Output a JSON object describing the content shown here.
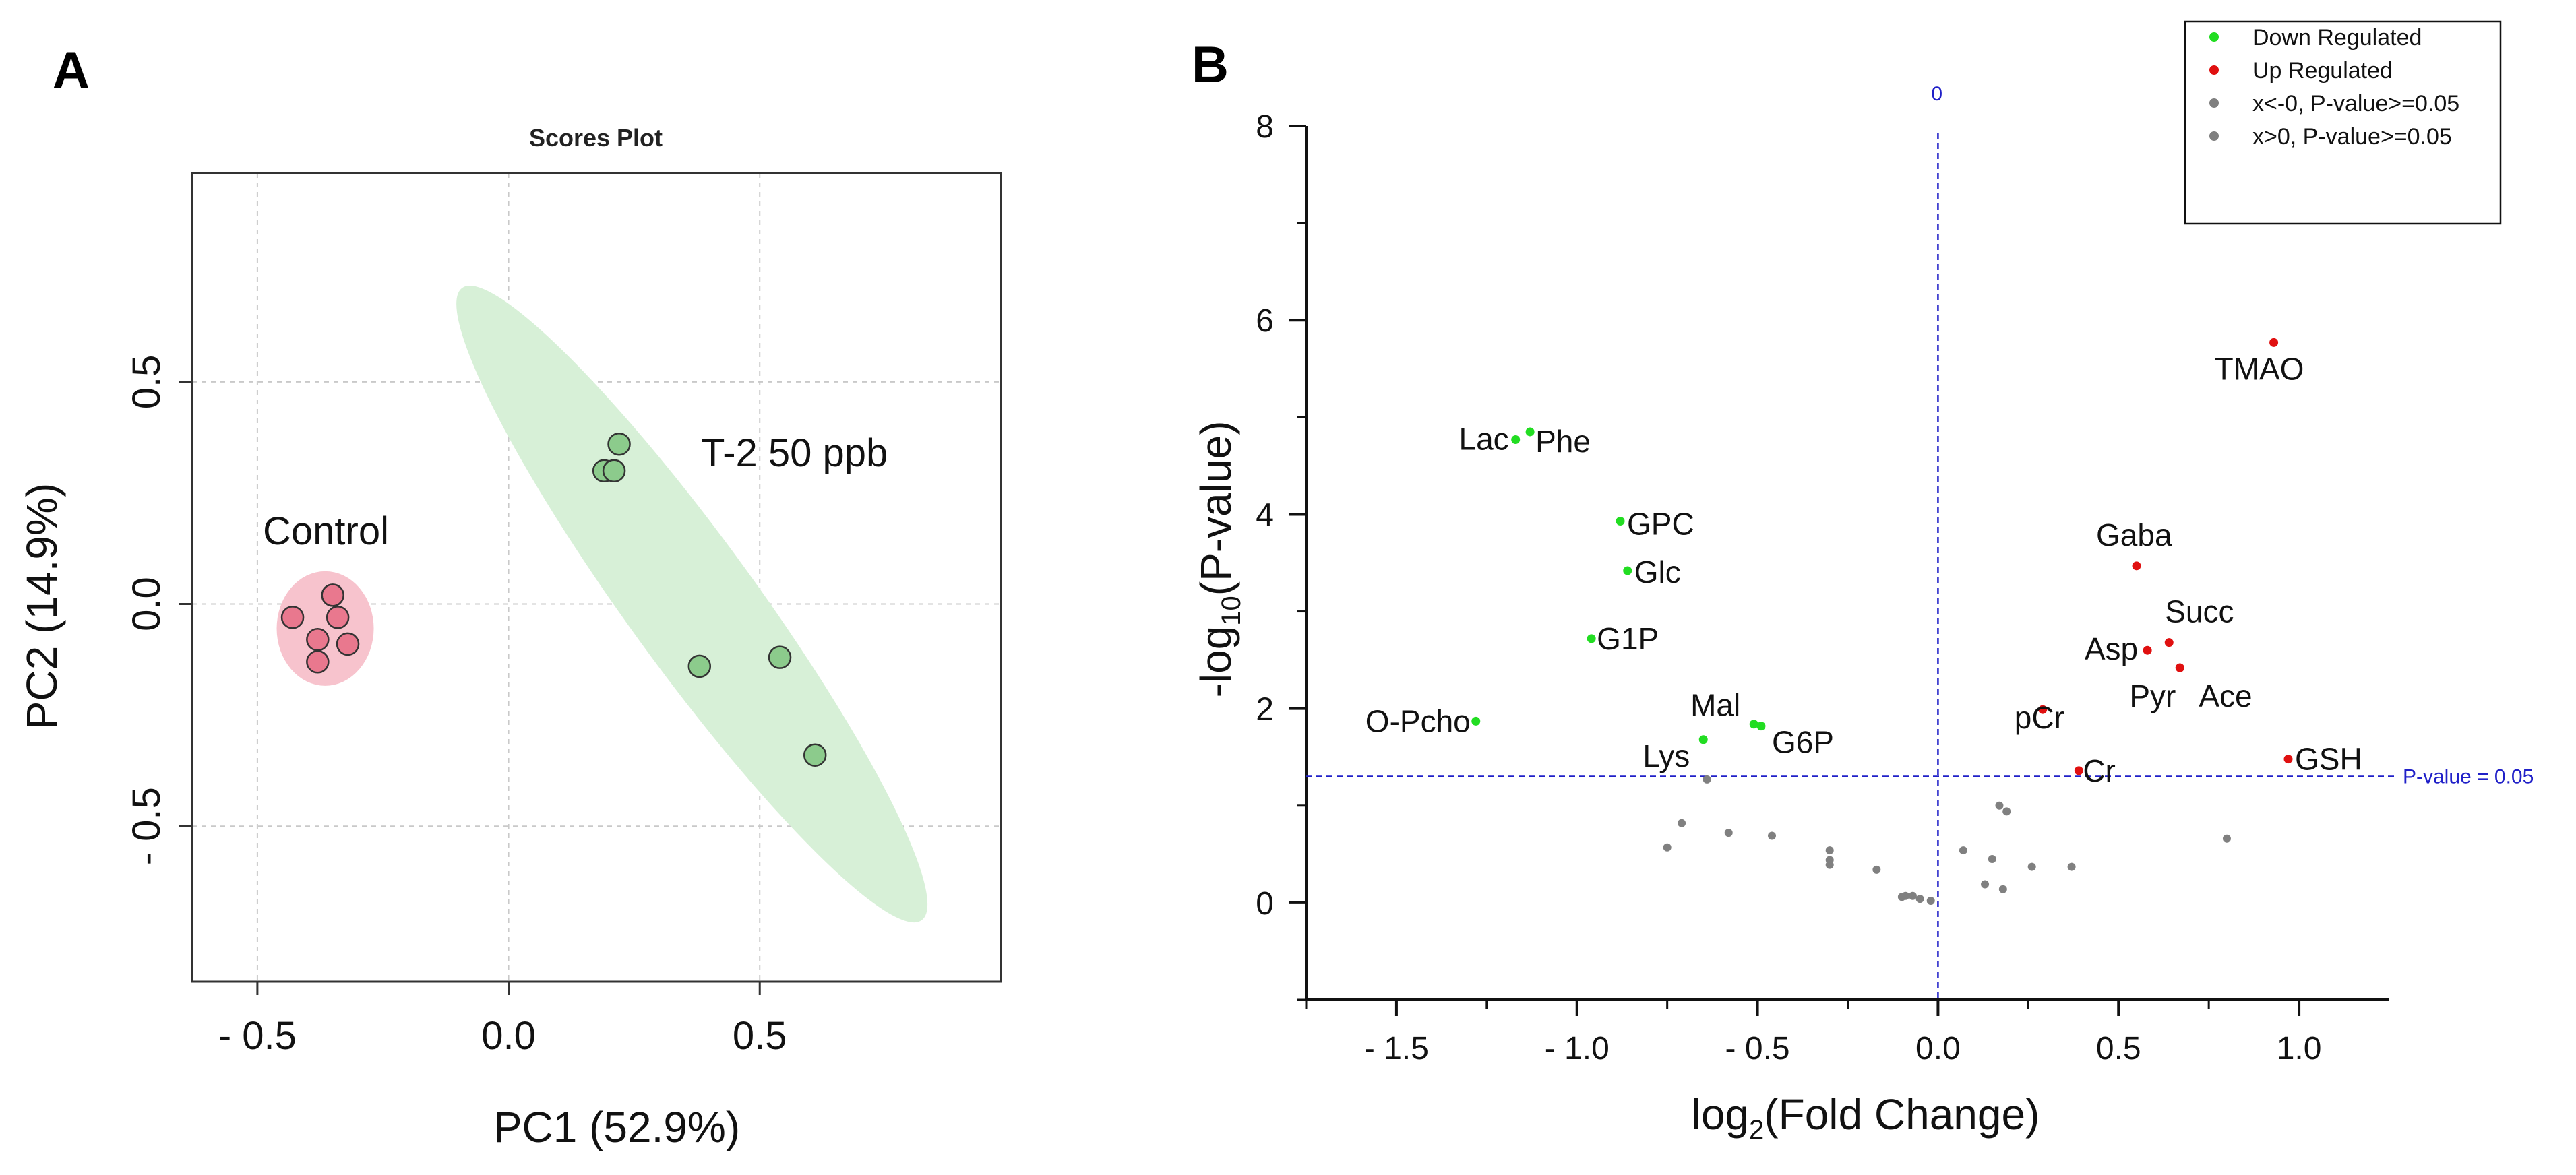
{
  "panels": {
    "a_letter": "A",
    "b_letter": "B"
  },
  "colors": {
    "control_fill": "#e9788e",
    "control_ellipse": "#f7c3cd",
    "t2_fill": "#8ccb8c",
    "t2_ellipse": "#d7f0d7",
    "down": "#22dd22",
    "up": "#e01010",
    "ns": "#808080",
    "ref_line": "#2020c8"
  },
  "chart_data": [
    {
      "type": "scatter",
      "title": "Scores Plot",
      "xlabel": "PC1 (52.9%)",
      "ylabel": "PC2 (14.9%)",
      "xlim": [
        -0.63,
        0.98
      ],
      "ylim": [
        -0.85,
        0.97
      ],
      "xticks": [
        -0.5,
        0.0,
        0.5
      ],
      "xtick_labels": [
        "- 0.5",
        "0.0",
        "0.5"
      ],
      "yticks": [
        -0.5,
        0.0,
        0.5
      ],
      "ytick_labels": [
        "- 0.5",
        "0.0",
        "0.5"
      ],
      "grid": true,
      "series": [
        {
          "name": "Control",
          "x": [
            -0.35,
            -0.43,
            -0.34,
            -0.38,
            -0.32,
            -0.38
          ],
          "y": [
            0.02,
            -0.03,
            -0.03,
            -0.08,
            -0.09,
            -0.13
          ]
        },
        {
          "name": "T-2 50 ppb",
          "x": [
            0.22,
            0.19,
            0.21,
            0.38,
            0.54,
            0.61
          ],
          "y": [
            0.36,
            0.3,
            0.3,
            -0.14,
            -0.12,
            -0.34
          ]
        }
      ]
    },
    {
      "type": "scatter",
      "title": "",
      "xlabel_prefix": "log",
      "xlabel_sub": "2",
      "xlabel_suffix": "(Fold Change)",
      "ylabel_prefix": "-log",
      "ylabel_sub": "10",
      "ylabel_suffix": "(P-value)",
      "xlim": [
        -1.75,
        1.25
      ],
      "ylim": [
        -1.0,
        8.0
      ],
      "xticks": [
        -1.5,
        -1.0,
        -0.5,
        0.0,
        0.5,
        1.0
      ],
      "xtick_labels": [
        "- 1.5",
        "- 1.0",
        "- 0.5",
        "0.0",
        "0.5",
        "1.0"
      ],
      "yticks": [
        0,
        2,
        4,
        6,
        8
      ],
      "ytick_labels": [
        "0",
        "2",
        "4",
        "6",
        "8"
      ],
      "threshold_y": 1.3,
      "threshold_label": "P-value = 0.05",
      "zero_x": 0.0,
      "zero_label": "0",
      "legend": [
        "Down Regulated",
        "Up Regulated",
        "x<-0, P-value>=0.05",
        "x>0, P-value>=0.05"
      ],
      "down": [
        {
          "name": "Lac",
          "x": -1.17,
          "y": 4.77
        },
        {
          "name": "Phe",
          "x": -1.13,
          "y": 4.85
        },
        {
          "name": "GPC",
          "x": -0.88,
          "y": 3.93
        },
        {
          "name": "Glc",
          "x": -0.86,
          "y": 3.42
        },
        {
          "name": "G1P",
          "x": -0.96,
          "y": 2.72
        },
        {
          "name": "O-Pcho",
          "x": -1.28,
          "y": 1.87
        },
        {
          "name": "Mal",
          "x": -0.51,
          "y": 1.84
        },
        {
          "name": "G6P",
          "x": -0.49,
          "y": 1.82
        },
        {
          "name": "Lys",
          "x": -0.65,
          "y": 1.68
        }
      ],
      "up": [
        {
          "name": "TMAO",
          "x": 0.93,
          "y": 5.77
        },
        {
          "name": "Gaba",
          "x": 0.55,
          "y": 3.47
        },
        {
          "name": "Succ",
          "x": 0.64,
          "y": 2.68
        },
        {
          "name": "Asp",
          "x": 0.58,
          "y": 2.6
        },
        {
          "name": "Pyr",
          "x": 0.67,
          "y": 2.42
        },
        {
          "name": "Ace",
          "x": 0.67,
          "y": 2.42
        },
        {
          "name": "pCr",
          "x": 0.29,
          "y": 1.99
        },
        {
          "name": "GSH",
          "x": 0.97,
          "y": 1.48
        },
        {
          "name": "Cr",
          "x": 0.39,
          "y": 1.36
        }
      ],
      "ns_neg": {
        "x": [
          -0.64,
          -0.71,
          -0.75,
          -0.58,
          -0.46,
          -0.3,
          -0.3,
          -0.3,
          -0.17,
          -0.1,
          -0.09,
          -0.07,
          -0.05,
          -0.02
        ],
        "y": [
          1.27,
          0.82,
          0.57,
          0.72,
          0.69,
          0.54,
          0.44,
          0.39,
          0.34,
          0.06,
          0.07,
          0.07,
          0.04,
          0.02
        ]
      },
      "ns_pos": {
        "x": [
          0.17,
          0.19,
          0.07,
          0.15,
          0.26,
          0.37,
          0.13,
          0.18,
          0.8
        ],
        "y": [
          1.0,
          0.94,
          0.54,
          0.45,
          0.37,
          0.37,
          0.19,
          0.14,
          0.66
        ]
      }
    }
  ]
}
